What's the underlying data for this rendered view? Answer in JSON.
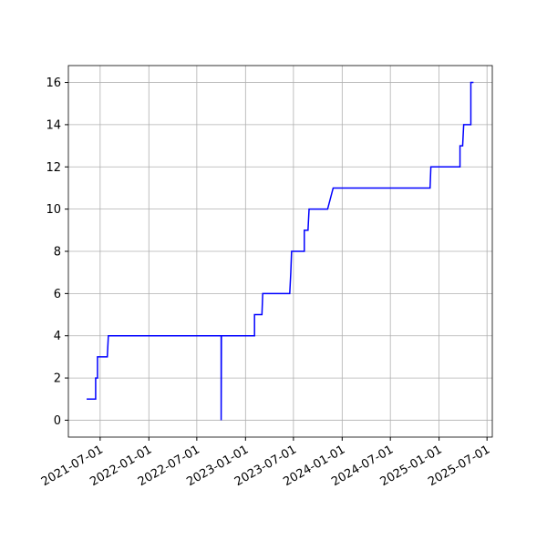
{
  "chart_data": {
    "type": "line",
    "x": [
      "2021-05-11",
      "2021-06-14",
      "2021-06-14",
      "2021-06-21",
      "2021-06-21",
      "2021-07-28",
      "2021-08-01",
      "2022-10-01",
      "2022-10-01",
      "2022-10-02",
      "2023-02-04",
      "2023-02-04",
      "2023-03-04",
      "2023-03-07",
      "2023-06-17",
      "2023-06-21",
      "2023-06-24",
      "2023-08-11",
      "2023-08-11",
      "2023-08-25",
      "2023-08-29",
      "2023-11-07",
      "2023-11-28",
      "2024-11-28",
      "2024-12-01",
      "2025-03-21",
      "2025-03-21",
      "2025-03-31",
      "2025-04-04",
      "2025-05-01",
      "2025-05-01",
      "2025-05-11"
    ],
    "series": [
      {
        "color": "#0000ff",
        "values": [
          1,
          1,
          2,
          2,
          3,
          3,
          4,
          4,
          0,
          4,
          4,
          5,
          5,
          6,
          6,
          7,
          8,
          8,
          9,
          9,
          10,
          10,
          11,
          11,
          12,
          12,
          13,
          13,
          14,
          14,
          16,
          16
        ]
      }
    ],
    "xlim": [
      "2021-03-03",
      "2025-07-21"
    ],
    "xticks": [
      "2021-07-01",
      "2022-01-01",
      "2022-07-01",
      "2023-01-01",
      "2023-07-01",
      "2024-01-01",
      "2024-07-01",
      "2025-01-01",
      "2025-07-01"
    ],
    "ylim": [
      -0.8,
      16.8
    ],
    "yticks": [
      0,
      2,
      4,
      6,
      8,
      10,
      12,
      14,
      16
    ],
    "grid": true
  }
}
